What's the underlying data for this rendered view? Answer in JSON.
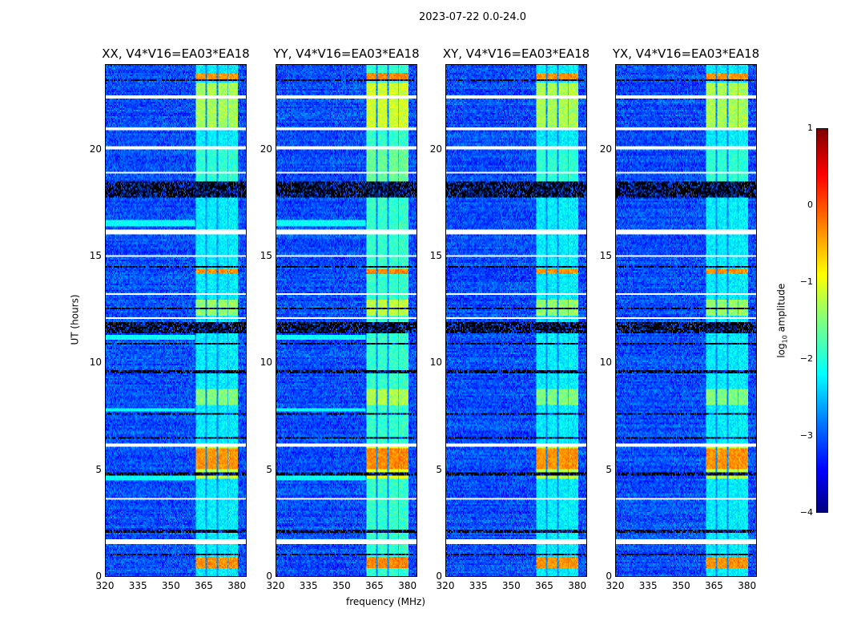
{
  "chart_data": {
    "type": "heatmap",
    "title": "2023-07-22 0.0-24.0",
    "xlabel": "frequency (MHz)",
    "ylabel": "UT (hours)",
    "xlim": [
      320,
      384.5
    ],
    "ylim": [
      0,
      24
    ],
    "xticks": [
      "320",
      "335",
      "350",
      "365",
      "380"
    ],
    "xtick_values": [
      320,
      335,
      350,
      365,
      380
    ],
    "yticks": [
      "0",
      "5",
      "10",
      "15",
      "20"
    ],
    "ytick_values": [
      0,
      5,
      10,
      15,
      20
    ],
    "panels": [
      {
        "title": "XX, V4*V16=EA03*EA18",
        "rfi_strength": 1.0,
        "lowband_bright": true
      },
      {
        "title": "YY, V4*V16=EA03*EA18",
        "rfi_strength": 1.15,
        "lowband_bright": true
      },
      {
        "title": "XY, V4*V16=EA03*EA18",
        "rfi_strength": 1.0,
        "lowband_bright": false
      },
      {
        "title": "YX, V4*V16=EA03*EA18",
        "rfi_strength": 1.0,
        "lowband_bright": false
      }
    ],
    "rfi_band_mhz": [
      361.5,
      381
    ],
    "rfi_subband_edges_mhz": [
      361.5,
      366,
      366.6,
      371,
      371.6,
      376,
      376.6,
      381
    ],
    "flagged_white_hours": [
      [
        1.5,
        1.75
      ],
      [
        16.05,
        16.3
      ],
      [
        20.05,
        20.15
      ],
      [
        20.95,
        21.05
      ],
      [
        22.45,
        22.55
      ],
      [
        22.7,
        22.75
      ],
      [
        18.9,
        18.95
      ],
      [
        3.6,
        3.65
      ],
      [
        2.9,
        2.95
      ],
      [
        6.1,
        6.2
      ],
      [
        7.4,
        7.45
      ],
      [
        9.2,
        9.25
      ],
      [
        12.05,
        12.15
      ],
      [
        15.0,
        15.05
      ],
      [
        13.2,
        13.25
      ]
    ],
    "flagged_black_hours": [
      [
        0.95,
        1.05
      ],
      [
        2.0,
        2.15
      ],
      [
        4.75,
        4.85
      ],
      [
        7.55,
        7.65
      ],
      [
        9.55,
        9.65
      ],
      [
        11.4,
        11.95
      ],
      [
        12.5,
        12.6
      ],
      [
        14.45,
        14.55
      ],
      [
        17.75,
        18.5
      ],
      [
        23.25,
        23.35
      ],
      [
        23.75,
        23.8
      ],
      [
        10.9,
        10.95
      ],
      [
        6.45,
        6.55
      ]
    ],
    "bright_rfi_hours": [
      [
        5.0,
        6.0
      ],
      [
        14.2,
        14.4
      ],
      [
        23.3,
        23.6
      ],
      [
        0.4,
        0.9
      ]
    ],
    "colorbar": {
      "label": "log10 amplitude",
      "label_base": "log",
      "label_sub": "10",
      "label_rest": " amplitude",
      "clim": [
        -4,
        1
      ],
      "ticks": [
        "1",
        "0",
        "−1",
        "−2",
        "−3",
        "−4"
      ],
      "tick_values": [
        1,
        0,
        -1,
        -2,
        -3,
        -4
      ]
    }
  }
}
